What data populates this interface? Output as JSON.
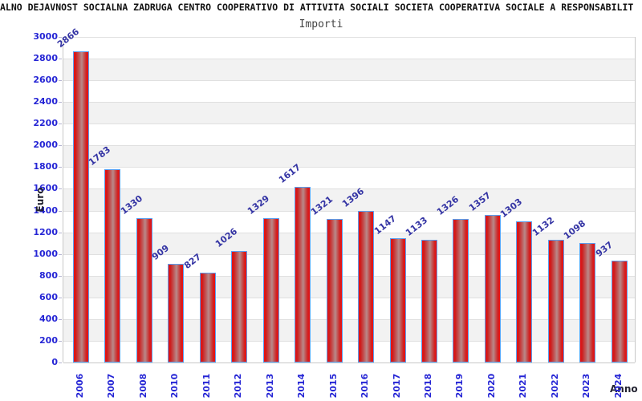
{
  "title": "ALNO DEJAVNOST SOCIALNA ZADRUGA CENTRO COOPERATIVO DI ATTIVITA SOCIALI SOCIETA COOPERATIVA SOCIALE A RESPONSABILIT",
  "subtitle": "Importi",
  "chart_data": {
    "type": "bar",
    "title": "Importi",
    "categories": [
      "2006",
      "2007",
      "2008",
      "2010",
      "2011",
      "2012",
      "2013",
      "2014",
      "2015",
      "2016",
      "2017",
      "2018",
      "2019",
      "2020",
      "2021",
      "2022",
      "2023",
      "2024"
    ],
    "values": [
      2866,
      1783,
      1330,
      909,
      827,
      1026,
      1329,
      1617,
      1321,
      1396,
      1147,
      1133,
      1326,
      1357,
      1303,
      1132,
      1098,
      937
    ],
    "data_labels": [
      "2866",
      "1783",
      "1330",
      "909",
      "827",
      "1026",
      "1329",
      "1617",
      "1321",
      "1396",
      "1147",
      "1133",
      "1326",
      "1357",
      "1303",
      "1132",
      "1098",
      "937"
    ],
    "xlabel": "Anno",
    "ylabel": "Euro",
    "ylim": [
      0,
      3000
    ],
    "ytick_step": 200,
    "yticks": [
      0,
      200,
      400,
      600,
      800,
      1000,
      1200,
      1400,
      1600,
      1800,
      2000,
      2200,
      2400,
      2600,
      2800,
      3000
    ],
    "grid": true,
    "legend_position": "none",
    "banded_background": true,
    "note": "2009 missing from x axis"
  },
  "colors": {
    "title": "#111111",
    "subtitle": "#444444",
    "tick_label": "#2525d5",
    "value_label": "#3434a4",
    "axis_name": "#222230",
    "band_alt": "#f2f2f2",
    "band_main": "#ffffff",
    "gridline": "#e0e0e0",
    "axis_line": "#c8c8c8",
    "bar_fill_edge": "#f01010",
    "bar_fill_center": "#b98a8a",
    "bar_border": "#5a9ff0"
  }
}
